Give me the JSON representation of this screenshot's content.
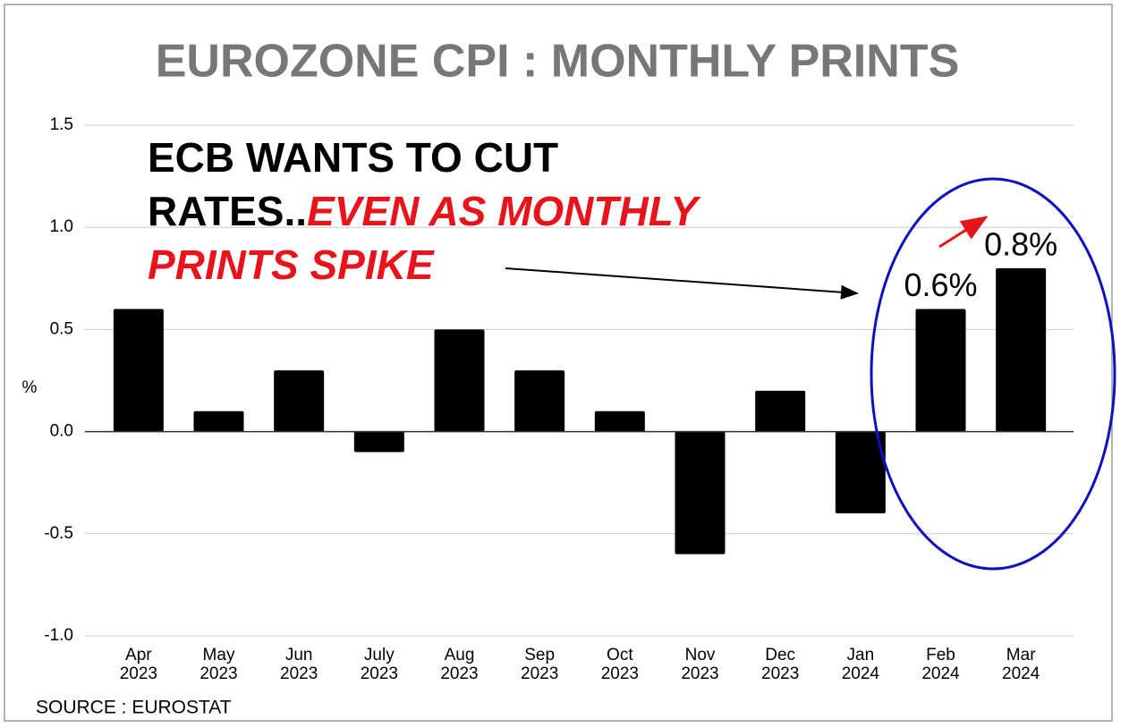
{
  "chart_data": {
    "type": "bar",
    "title": "EUROZONE CPI : MONTHLY PRINTS",
    "annotation": {
      "black": "ECB WANTS TO CUT RATES..",
      "red": "EVEN AS MONTHLY PRINTS SPIKE"
    },
    "source": "SOURCE : EUROSTAT",
    "y_label": "%",
    "categories": [
      "Apr 2023",
      "May 2023",
      "Jun 2023",
      "July 2023",
      "Aug 2023",
      "Sep 2023",
      "Oct 2023",
      "Nov 2023",
      "Dec 2023",
      "Jan 2024",
      "Feb 2024",
      "Mar 2024"
    ],
    "values": [
      0.6,
      0.1,
      0.3,
      -0.1,
      0.5,
      0.3,
      0.1,
      -0.6,
      0.2,
      -0.4,
      0.6,
      0.8
    ],
    "value_labels": [
      null,
      null,
      null,
      null,
      null,
      null,
      null,
      null,
      null,
      null,
      "0.6%",
      "0.8%"
    ],
    "color": "#000000",
    "ylim": [
      -1,
      1.5
    ],
    "yticks": [
      1.5,
      {
        "value": 1,
        "label": "1.0"
      },
      0.5,
      {
        "value": 0,
        "label": "0.0"
      },
      -0.5,
      {
        "value": -1,
        "label": "-1.0"
      }
    ],
    "grid": true
  }
}
